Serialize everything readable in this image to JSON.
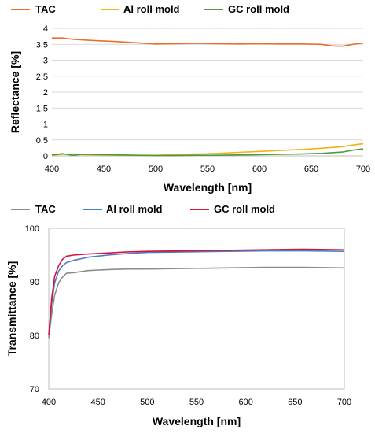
{
  "chart_data": [
    {
      "type": "line",
      "xlabel": "Wavelength [nm]",
      "ylabel": "Reflectance [%]",
      "xlim": [
        400,
        700
      ],
      "ylim": [
        0,
        4
      ],
      "xticks": [
        "400",
        "450",
        "500",
        "550",
        "600",
        "650",
        "700"
      ],
      "yticks": [
        "0",
        "0.5",
        "1",
        "1.5",
        "2",
        "2.5",
        "3",
        "3.5",
        "4"
      ],
      "grid": "horizontal",
      "legend_position": "top",
      "series": [
        {
          "name": "TAC",
          "color": "#e8702a",
          "x": [
            400,
            410,
            420,
            440,
            460,
            480,
            500,
            520,
            540,
            560,
            580,
            600,
            620,
            640,
            660,
            670,
            680,
            690,
            700
          ],
          "y": [
            3.7,
            3.7,
            3.66,
            3.62,
            3.59,
            3.55,
            3.51,
            3.52,
            3.53,
            3.52,
            3.51,
            3.52,
            3.51,
            3.51,
            3.5,
            3.45,
            3.44,
            3.5,
            3.54
          ]
        },
        {
          "name": "Al roll mold",
          "color": "#f2b01e",
          "x": [
            400,
            410,
            420,
            430,
            450,
            480,
            500,
            520,
            540,
            560,
            580,
            600,
            620,
            640,
            660,
            680,
            690,
            700
          ],
          "y": [
            0.02,
            0.05,
            0.06,
            0.04,
            0.03,
            0.02,
            0.02,
            0.04,
            0.06,
            0.08,
            0.11,
            0.14,
            0.17,
            0.2,
            0.24,
            0.29,
            0.34,
            0.38
          ]
        },
        {
          "name": "GC roll mold",
          "color": "#4e9a3a",
          "x": [
            400,
            410,
            420,
            430,
            450,
            480,
            500,
            520,
            540,
            560,
            580,
            600,
            620,
            640,
            660,
            680,
            690,
            700
          ],
          "y": [
            0.03,
            0.07,
            0.02,
            0.05,
            0.04,
            0.02,
            0.01,
            0.01,
            0.02,
            0.02,
            0.03,
            0.04,
            0.05,
            0.06,
            0.08,
            0.12,
            0.18,
            0.22
          ]
        }
      ]
    },
    {
      "type": "line",
      "xlabel": "Wavelength [nm]",
      "ylabel": "Transmittance [%]",
      "xlim": [
        400,
        700
      ],
      "ylim": [
        70,
        100
      ],
      "xticks": [
        "400",
        "450",
        "500",
        "550",
        "600",
        "650",
        "700"
      ],
      "yticks": [
        "70",
        "80",
        "90",
        "100"
      ],
      "grid": "none",
      "legend_position": "top",
      "series": [
        {
          "name": "TAC",
          "color": "#8c8c8c",
          "x": [
            400,
            403,
            406,
            410,
            414,
            418,
            425,
            440,
            460,
            480,
            500,
            540,
            580,
            620,
            660,
            700
          ],
          "y": [
            79.5,
            84.0,
            87.5,
            89.8,
            90.9,
            91.6,
            91.7,
            92.1,
            92.3,
            92.4,
            92.4,
            92.5,
            92.6,
            92.7,
            92.7,
            92.6
          ]
        },
        {
          "name": "Al roll mold",
          "color": "#4a7fc1",
          "x": [
            400,
            403,
            406,
            410,
            414,
            418,
            425,
            440,
            460,
            480,
            500,
            540,
            580,
            620,
            660,
            700
          ],
          "y": [
            80.0,
            86.0,
            89.8,
            92.0,
            93.0,
            93.6,
            94.0,
            94.6,
            95.0,
            95.3,
            95.5,
            95.6,
            95.7,
            95.8,
            95.8,
            95.7
          ]
        },
        {
          "name": "GC roll mold",
          "color": "#d4143c",
          "x": [
            400,
            403,
            406,
            410,
            414,
            418,
            425,
            440,
            460,
            480,
            500,
            540,
            580,
            620,
            660,
            700
          ],
          "y": [
            80.0,
            87.0,
            91.0,
            93.0,
            94.2,
            94.8,
            95.0,
            95.2,
            95.4,
            95.6,
            95.7,
            95.8,
            95.9,
            96.0,
            96.1,
            96.0
          ]
        }
      ]
    }
  ]
}
